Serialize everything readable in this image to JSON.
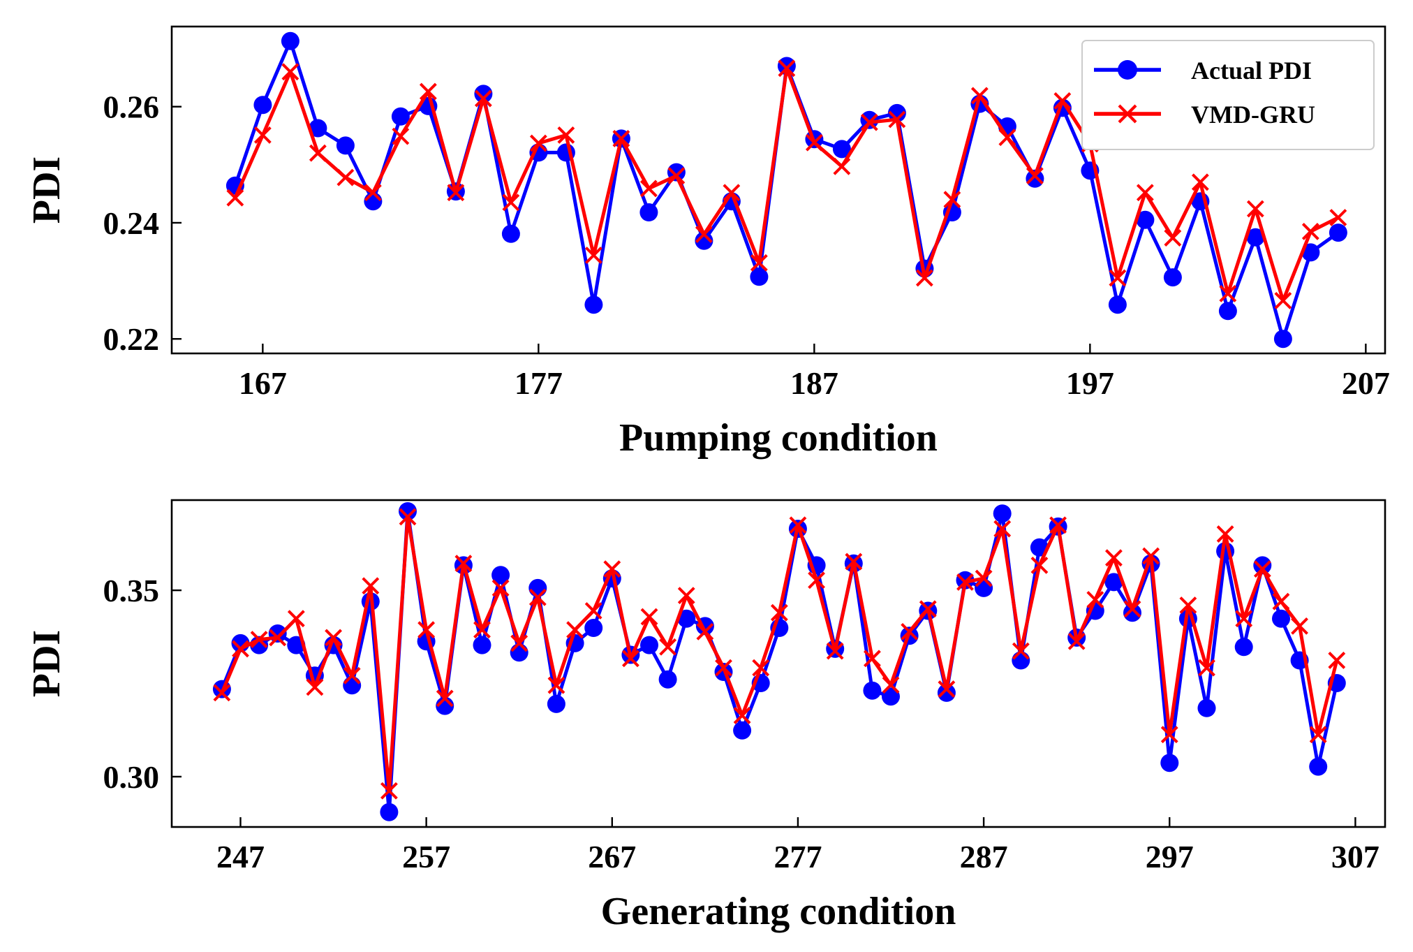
{
  "colors": {
    "actual": "#0000ff",
    "predicted": "#ff0000"
  },
  "legend": {
    "placement": "top-right",
    "actual_label": "Actual PDI",
    "predicted_label": "VMD-GRU"
  },
  "chart_data": [
    {
      "type": "line",
      "xlabel": "Pumping condition",
      "ylabel": "PDI",
      "xlim": [
        163.7,
        207.7
      ],
      "ylim": [
        0.2175,
        0.2738
      ],
      "xticks": [
        167,
        177,
        187,
        197,
        207
      ],
      "yticks": [
        0.22,
        0.24,
        0.26
      ],
      "ytick_labels": [
        "0.22",
        "0.24",
        "0.26"
      ],
      "x": [
        166,
        167,
        168,
        169,
        170,
        171,
        172,
        173,
        174,
        175,
        176,
        177,
        178,
        179,
        180,
        181,
        182,
        183,
        184,
        185,
        186,
        187,
        188,
        189,
        190,
        191,
        192,
        193,
        194,
        195,
        196,
        197,
        198,
        199,
        200,
        201,
        202,
        203,
        204,
        205,
        206
      ],
      "series": [
        {
          "name": "Actual PDI",
          "marker": "circle",
          "values": [
            0.2464,
            0.2603,
            0.2713,
            0.2563,
            0.2533,
            0.2437,
            0.2583,
            0.2601,
            0.2454,
            0.2622,
            0.2381,
            0.2521,
            0.2521,
            0.2259,
            0.2545,
            0.2418,
            0.2487,
            0.2369,
            0.2437,
            0.2307,
            0.267,
            0.2544,
            0.2527,
            0.2577,
            0.2589,
            0.2321,
            0.2418,
            0.2605,
            0.2566,
            0.2476,
            0.2598,
            0.249,
            0.2259,
            0.2405,
            0.2306,
            0.2437,
            0.2248,
            0.2375,
            0.22,
            0.2349,
            0.2383
          ]
        },
        {
          "name": "VMD-GRU",
          "marker": "x",
          "values": [
            0.2443,
            0.2551,
            0.266,
            0.252,
            0.2478,
            0.2452,
            0.2549,
            0.2626,
            0.2452,
            0.2614,
            0.2435,
            0.2537,
            0.2551,
            0.2344,
            0.2545,
            0.2459,
            0.2481,
            0.238,
            0.2452,
            0.2331,
            0.2666,
            0.2538,
            0.2497,
            0.2573,
            0.2578,
            0.2305,
            0.244,
            0.2619,
            0.2547,
            0.2481,
            0.261,
            0.2536,
            0.2305,
            0.2452,
            0.2374,
            0.247,
            0.2278,
            0.2424,
            0.2266,
            0.2385,
            0.2409
          ]
        }
      ]
    },
    {
      "type": "line",
      "xlabel": "Generating condition",
      "ylabel": "PDI",
      "xlim": [
        243.3,
        308.6
      ],
      "ylim": [
        0.2865,
        0.3742
      ],
      "xticks": [
        247,
        257,
        267,
        277,
        287,
        297,
        307
      ],
      "yticks": [
        0.3,
        0.35
      ],
      "ytick_labels": [
        "0.30",
        "0.35"
      ],
      "x": [
        246,
        247,
        248,
        249,
        250,
        251,
        252,
        253,
        254,
        255,
        256,
        257,
        258,
        259,
        260,
        261,
        262,
        263,
        264,
        265,
        266,
        267,
        268,
        269,
        270,
        271,
        272,
        273,
        274,
        275,
        276,
        277,
        278,
        279,
        280,
        281,
        282,
        283,
        284,
        285,
        286,
        287,
        288,
        289,
        290,
        291,
        292,
        293,
        294,
        295,
        296,
        297,
        298,
        299,
        300,
        301,
        302,
        303,
        304,
        305,
        306
      ],
      "series": [
        {
          "name": "Actual PDI",
          "marker": "circle",
          "values": [
            0.3235,
            0.3358,
            0.3353,
            0.3384,
            0.3353,
            0.3271,
            0.3353,
            0.3245,
            0.347,
            0.2905,
            0.3712,
            0.3363,
            0.319,
            0.3567,
            0.3353,
            0.3541,
            0.3333,
            0.3506,
            0.3195,
            0.3358,
            0.3399,
            0.3532,
            0.3327,
            0.3353,
            0.3261,
            0.3424,
            0.3404,
            0.3281,
            0.3124,
            0.3251,
            0.3399,
            0.3665,
            0.3567,
            0.3343,
            0.3572,
            0.3231,
            0.3215,
            0.3378,
            0.3445,
            0.3225,
            0.3527,
            0.3506,
            0.3706,
            0.3312,
            0.3615,
            0.3671,
            0.3373,
            0.3445,
            0.3522,
            0.344,
            0.3572,
            0.3037,
            0.3424,
            0.3184,
            0.3605,
            0.3348,
            0.3567,
            0.3424,
            0.3312,
            0.3027,
            0.3251
          ]
        },
        {
          "name": "VMD-GRU",
          "marker": "x",
          "values": [
            0.3225,
            0.3343,
            0.3368,
            0.3373,
            0.3424,
            0.324,
            0.3373,
            0.3271,
            0.3512,
            0.2962,
            0.3697,
            0.3394,
            0.321,
            0.3572,
            0.3394,
            0.3506,
            0.3358,
            0.3481,
            0.3245,
            0.3394,
            0.3445,
            0.3557,
            0.3317,
            0.3429,
            0.3348,
            0.3486,
            0.3389,
            0.3292,
            0.3164,
            0.3292,
            0.344,
            0.3675,
            0.3527,
            0.3337,
            0.3577,
            0.3317,
            0.3246,
            0.3389,
            0.345,
            0.3235,
            0.3522,
            0.3532,
            0.3665,
            0.3337,
            0.3567,
            0.3675,
            0.3363,
            0.3475,
            0.3587,
            0.345,
            0.3592,
            0.3113,
            0.346,
            0.3292,
            0.3651,
            0.3424,
            0.3557,
            0.347,
            0.3404,
            0.3113,
            0.3312
          ]
        }
      ]
    }
  ]
}
